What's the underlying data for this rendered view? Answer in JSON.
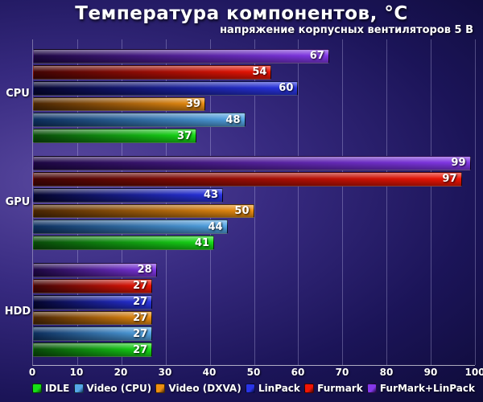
{
  "header": {
    "title": "Температура компонентов, °C",
    "subtitle": "напряжение корпусных вентиляторов 5 В"
  },
  "chart_data": {
    "type": "bar",
    "orientation": "horizontal",
    "title": "Температура компонентов, °C",
    "subtitle": "напряжение корпусных вентиляторов 5 В",
    "xlim": [
      0,
      100
    ],
    "ticks": [
      0,
      10,
      20,
      30,
      40,
      50,
      60,
      70,
      80,
      90,
      100
    ],
    "grid": "vertical",
    "legend_position": "bottom",
    "legend": [
      "IDLE",
      "Video (CPU)",
      "Video (DXVA)",
      "LinPack",
      "Furmark",
      "FurMark+LinPack"
    ],
    "series_styles": {
      "IDLE": {
        "from": "#0a4a0a",
        "to": "#17e017"
      },
      "Video (CPU)": {
        "from": "#0d2f5e",
        "to": "#55a8e8"
      },
      "Video (DXVA)": {
        "from": "#4a2604",
        "to": "#ef9012"
      },
      "LinPack": {
        "from": "#05052e",
        "to": "#2a35e8"
      },
      "Furmark": {
        "from": "#420505",
        "to": "#f21505"
      },
      "FurMark+LinPack": {
        "from": "#1d0742",
        "to": "#8438ea"
      }
    },
    "categories": [
      "CPU",
      "GPU",
      "HDD"
    ],
    "groups": [
      {
        "label": "CPU",
        "bars": [
          {
            "series": "FurMark+LinPack",
            "value": 67
          },
          {
            "series": "Furmark",
            "value": 54
          },
          {
            "series": "LinPack",
            "value": 60
          },
          {
            "series": "Video (DXVA)",
            "value": 39
          },
          {
            "series": "Video (CPU)",
            "value": 48
          },
          {
            "series": "IDLE",
            "value": 37
          }
        ]
      },
      {
        "label": "GPU",
        "bars": [
          {
            "series": "FurMark+LinPack",
            "value": 99
          },
          {
            "series": "Furmark",
            "value": 97
          },
          {
            "series": "LinPack",
            "value": 43
          },
          {
            "series": "Video (DXVA)",
            "value": 50
          },
          {
            "series": "Video (CPU)",
            "value": 44
          },
          {
            "series": "IDLE",
            "value": 41
          }
        ]
      },
      {
        "label": "HDD",
        "bars": [
          {
            "series": "FurMark+LinPack",
            "value": 28
          },
          {
            "series": "Furmark",
            "value": 27
          },
          {
            "series": "LinPack",
            "value": 27
          },
          {
            "series": "Video (DXVA)",
            "value": 27
          },
          {
            "series": "Video (CPU)",
            "value": 27
          },
          {
            "series": "IDLE",
            "value": 27
          }
        ]
      }
    ]
  }
}
